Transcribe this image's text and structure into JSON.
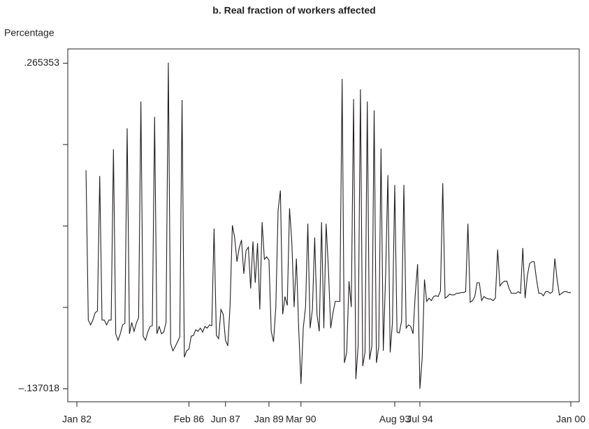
{
  "chart_data": {
    "type": "line",
    "title": "b. Real fraction of workers affected",
    "ylabel": "Percentage",
    "ylim": [
      -0.153,
      0.283
    ],
    "yticks": [
      {
        "value": -0.137018,
        "label": "–.137018"
      },
      {
        "value": 0.265353,
        "label": ".265353"
      }
    ],
    "yminorticks": [
      -0.0364,
      0.0642,
      0.1648
    ],
    "categories": [
      "Jan 82",
      null,
      null,
      null,
      null,
      null,
      null,
      null,
      null,
      null,
      null,
      null,
      null,
      null,
      null,
      null,
      null,
      null,
      null,
      null,
      null,
      null,
      null,
      null,
      null,
      null,
      null,
      null,
      null,
      null,
      null,
      null,
      null,
      null,
      null,
      null,
      null,
      null,
      null,
      null,
      null,
      null,
      null,
      null,
      null,
      null,
      null,
      null,
      null,
      "Feb 86",
      null,
      null,
      null,
      null,
      null,
      null,
      null,
      null,
      null,
      null,
      null,
      null,
      null,
      null,
      null,
      "Jun 87",
      null,
      null,
      null,
      null,
      null,
      null,
      null,
      null,
      null,
      null,
      null,
      null,
      null,
      null,
      null,
      null,
      null,
      null,
      "Jan 89",
      null,
      null,
      null,
      null,
      null,
      null,
      null,
      null,
      null,
      null,
      null,
      null,
      null,
      "Mar 90",
      null,
      null,
      null,
      null,
      null,
      null,
      null,
      null,
      null,
      null,
      null,
      null,
      null,
      null,
      null,
      null,
      null,
      null,
      null,
      null,
      null,
      null,
      null,
      null,
      null,
      null,
      null,
      null,
      null,
      null,
      null,
      null,
      null,
      null,
      null,
      null,
      null,
      null,
      null,
      null,
      "Aug 93",
      null,
      null,
      null,
      null,
      null,
      null,
      null,
      null,
      null,
      null,
      "Jul 94",
      null,
      null,
      null,
      null,
      null,
      null,
      null,
      null,
      null,
      null,
      null,
      null,
      null,
      null,
      null,
      null,
      null,
      null,
      null,
      null,
      null,
      null,
      null,
      null,
      null,
      null,
      null,
      null,
      null,
      null,
      null,
      null,
      null,
      null,
      null,
      null,
      null,
      null,
      null,
      null,
      null,
      null,
      null,
      null,
      null,
      null,
      null,
      null,
      null,
      null,
      null,
      null,
      null,
      null,
      null,
      null,
      null,
      null,
      null,
      null,
      null,
      null,
      null,
      null,
      null,
      "Jan 00"
    ],
    "series": [
      {
        "color": "#231f20",
        "values": [
          null,
          null,
          null,
          null,
          0.133,
          -0.052,
          -0.058,
          -0.052,
          -0.043,
          -0.041,
          0.126,
          -0.052,
          -0.052,
          -0.058,
          -0.052,
          -0.052,
          0.159,
          -0.069,
          -0.077,
          -0.069,
          -0.058,
          -0.056,
          0.185,
          -0.069,
          -0.055,
          -0.066,
          -0.056,
          -0.049,
          0.218,
          -0.072,
          -0.077,
          -0.067,
          -0.06,
          -0.059,
          0.199,
          -0.069,
          -0.06,
          -0.069,
          -0.067,
          -0.055,
          0.266,
          -0.081,
          -0.09,
          -0.085,
          -0.079,
          -0.073,
          0.22,
          -0.098,
          -0.09,
          -0.088,
          -0.072,
          -0.071,
          -0.064,
          -0.066,
          -0.062,
          -0.067,
          -0.06,
          -0.062,
          -0.058,
          -0.059,
          0.061,
          -0.071,
          -0.075,
          -0.039,
          -0.045,
          -0.077,
          -0.084,
          -0.034,
          0.065,
          0.05,
          0.02,
          0.037,
          0.047,
          0.005,
          0.034,
          0.038,
          -0.013,
          0.045,
          -0.006,
          0.043,
          -0.039,
          0.069,
          0.023,
          0.026,
          0.022,
          -0.066,
          -0.079,
          -0.036,
          0.084,
          0.108,
          -0.045,
          -0.023,
          -0.034,
          0.086,
          0.044,
          -0.036,
          0.024,
          -0.062,
          -0.131,
          -0.062,
          -0.036,
          0.067,
          -0.062,
          -0.039,
          0.05,
          -0.045,
          -0.066,
          0.069,
          -0.062,
          0.067,
          0.011,
          -0.062,
          -0.043,
          -0.029,
          -0.029,
          -0.029,
          0.246,
          -0.105,
          -0.092,
          -0.004,
          -0.036,
          0.221,
          -0.125,
          -0.084,
          0.233,
          -0.109,
          -0.092,
          0.218,
          -0.101,
          -0.084,
          0.207,
          -0.105,
          -0.085,
          0.16,
          -0.09,
          0.003,
          0.127,
          -0.092,
          -0.055,
          0.115,
          -0.067,
          -0.068,
          -0.053,
          0.115,
          -0.062,
          -0.058,
          -0.06,
          -0.069,
          -0.019,
          0.017,
          -0.137,
          -0.099,
          -0.002,
          -0.029,
          -0.025,
          -0.028,
          -0.023,
          -0.022,
          -0.023,
          -0.016,
          0.117,
          -0.025,
          -0.023,
          -0.02,
          -0.021,
          -0.021,
          -0.019,
          -0.019,
          -0.018,
          -0.018,
          -0.017,
          0.067,
          -0.03,
          -0.028,
          -0.023,
          -0.006,
          -0.006,
          -0.028,
          -0.023,
          -0.025,
          -0.026,
          -0.026,
          -0.028,
          -0.025,
          0.035,
          -0.01,
          -0.006,
          -0.004,
          -0.004,
          -0.013,
          -0.019,
          -0.019,
          -0.019,
          -0.017,
          -0.019,
          0.037,
          -0.025,
          0.003,
          0.018,
          0.02,
          0.02,
          -0.002,
          -0.019,
          -0.019,
          -0.022,
          -0.017,
          -0.017,
          -0.019,
          -0.017,
          0.024,
          -0.002,
          -0.021,
          -0.019,
          -0.017,
          -0.017,
          -0.018,
          -0.018
        ]
      }
    ]
  }
}
